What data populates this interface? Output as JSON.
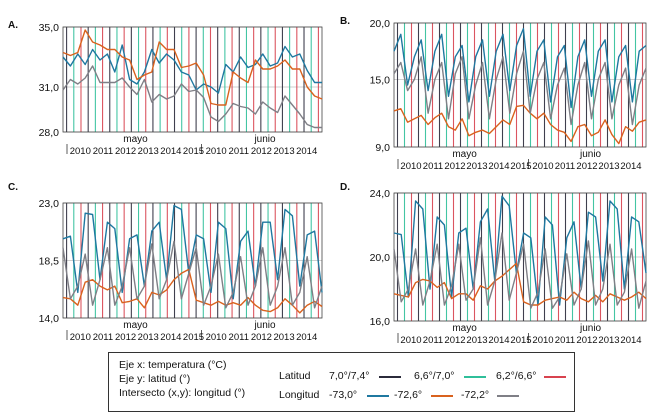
{
  "colors": {
    "lat_dark": "#2b2b3b",
    "lat_teal": "#2fbf9a",
    "lat_red": "#d8434f",
    "lon_blue": "#1f78a0",
    "lon_orange": "#d9621e",
    "lon_gray": "#7f7f86"
  },
  "legend": {
    "axis_x": "Eje x: temperatura (°C)",
    "axis_y": "Eje y: latitud (°)",
    "axis_xy": "Intersecto (x,y): longitud (°)",
    "lat_title": "Latitud",
    "lon_title": "Longitud",
    "lat_items": [
      {
        "label": "7,0°/7,4°",
        "color": "#2b2b3b"
      },
      {
        "label": "6,6°/7,0°",
        "color": "#2fbf9a"
      },
      {
        "label": "6,2°/6,6°",
        "color": "#d8434f"
      }
    ],
    "lon_items": [
      {
        "label": "-73,0°",
        "color": "#1f78a0"
      },
      {
        "label": "-72,6°",
        "color": "#d9621e"
      },
      {
        "label": "-72,2°",
        "color": "#7f7f86"
      }
    ]
  },
  "chart_data": [
    {
      "type": "line",
      "panel": "A.",
      "ylim": [
        28.0,
        35.0
      ],
      "yticks": [
        "35,0",
        "31,0",
        "28,0"
      ],
      "ytick_values": [
        35.0,
        31.0,
        28.0
      ],
      "years": [
        "2010",
        "2011",
        "2012",
        "2013",
        "2014",
        "2015",
        "2010",
        "2011",
        "2012",
        "2013",
        "2014"
      ],
      "months": [
        "mayo",
        "junio"
      ],
      "series": [
        {
          "color_key": "lon_blue",
          "values": [
            33.0,
            32.4,
            33.2,
            32.5,
            33.5,
            32.8,
            33.2,
            32.0,
            33.8,
            31.5,
            31.2,
            32.0,
            33.5,
            32.6,
            33.2,
            32.8,
            32.0,
            31.8,
            30.8,
            31.2,
            31.0,
            30.6,
            32.5,
            32.0,
            33.0,
            32.3,
            32.5,
            33.2,
            32.4,
            32.6,
            33.7,
            33.0,
            33.2,
            32.1,
            31.3,
            31.3
          ]
        },
        {
          "color_key": "lon_orange",
          "values": [
            33.3,
            33.1,
            33.3,
            34.8,
            34.0,
            33.8,
            33.5,
            33.5,
            33.0,
            32.8,
            31.5,
            31.8,
            32.0,
            34.0,
            33.5,
            33.5,
            32.3,
            32.4,
            32.6,
            31.8,
            29.9,
            29.8,
            29.8,
            32.0,
            31.6,
            31.3,
            32.8,
            32.2,
            32.2,
            32.4,
            32.8,
            32.2,
            32.2,
            31.0,
            30.4,
            30.2
          ]
        },
        {
          "color_key": "lon_gray",
          "values": [
            30.8,
            31.5,
            31.2,
            31.6,
            32.4,
            31.3,
            31.3,
            31.3,
            31.6,
            31.0,
            30.5,
            31.5,
            30.0,
            30.5,
            30.2,
            30.4,
            31.2,
            30.7,
            30.8,
            30.3,
            29.0,
            28.7,
            29.2,
            29.9,
            29.7,
            29.6,
            29.2,
            30.0,
            29.6,
            29.3,
            30.4,
            29.8,
            29.2,
            28.5,
            28.3,
            28.3
          ]
        }
      ]
    },
    {
      "type": "line",
      "panel": "B.",
      "ylim": [
        9.0,
        20.0
      ],
      "yticks": [
        "20,0",
        "15,0",
        "9,0"
      ],
      "ytick_values": [
        20.0,
        15.0,
        9.0
      ],
      "years": [
        "2010",
        "2011",
        "2012",
        "2013",
        "2014",
        "2015",
        "2010",
        "2011",
        "2012",
        "2013",
        "2014"
      ],
      "months": [
        "mayo",
        "junio"
      ],
      "series": [
        {
          "color_key": "lon_blue",
          "values": [
            17.5,
            19.0,
            14.5,
            17.0,
            18.5,
            14.0,
            17.5,
            19.0,
            13.5,
            17.0,
            18.0,
            13.0,
            17.0,
            18.5,
            13.5,
            17.5,
            19.0,
            14.0,
            18.0,
            19.5,
            13.5,
            17.5,
            18.5,
            13.0,
            17.0,
            18.0,
            12.5,
            17.0,
            18.5,
            13.5,
            17.5,
            18.5,
            13.0,
            17.0,
            18.0,
            13.0,
            17.5,
            18.0
          ]
        },
        {
          "color_key": "lon_orange",
          "values": [
            12.2,
            12.4,
            11.2,
            11.5,
            11.8,
            11.0,
            11.6,
            12.0,
            10.8,
            10.5,
            11.5,
            10.0,
            10.3,
            10.5,
            10.2,
            10.8,
            11.4,
            11.0,
            12.6,
            12.7,
            12.0,
            11.5,
            12.0,
            11.0,
            10.5,
            10.3,
            9.5,
            10.8,
            11.0,
            10.0,
            10.3,
            11.4,
            10.1,
            9.3,
            10.8,
            10.4,
            11.2,
            11.4
          ]
        },
        {
          "color_key": "lon_gray",
          "values": [
            15.5,
            16.5,
            14.0,
            15.0,
            17.0,
            12.0,
            15.0,
            16.5,
            11.5,
            15.5,
            17.0,
            11.5,
            14.5,
            16.5,
            11.5,
            15.0,
            17.0,
            12.0,
            15.5,
            17.5,
            12.0,
            15.0,
            16.5,
            11.5,
            14.5,
            16.0,
            11.0,
            14.5,
            16.5,
            11.5,
            15.0,
            16.5,
            11.5,
            14.5,
            16.0,
            11.0,
            14.5,
            16.0
          ]
        }
      ]
    },
    {
      "type": "line",
      "panel": "C.",
      "ylim": [
        14.0,
        23.0
      ],
      "yticks": [
        "23,0",
        "18,5",
        "14,0"
      ],
      "ytick_values": [
        23.0,
        18.5,
        14.0
      ],
      "years": [
        "2010",
        "2011",
        "2012",
        "2013",
        "2014",
        "2015",
        "2010",
        "2011",
        "2012",
        "2013",
        "2014"
      ],
      "months": [
        "mayo",
        "junio"
      ],
      "series": [
        {
          "color_key": "lon_blue",
          "values": [
            20.2,
            20.4,
            16.0,
            22.2,
            22.1,
            17.0,
            21.5,
            21.0,
            16.0,
            20.2,
            20.5,
            16.5,
            20.8,
            21.5,
            17.0,
            22.8,
            22.5,
            17.5,
            20.5,
            20.2,
            16.0,
            21.5,
            21.0,
            15.5,
            20.0,
            20.8,
            16.5,
            21.5,
            21.5,
            17.0,
            22.5,
            22.0,
            16.5,
            20.5,
            20.8,
            16.0
          ]
        },
        {
          "color_key": "lon_orange",
          "values": [
            15.6,
            15.5,
            15.0,
            16.8,
            17.0,
            16.5,
            16.2,
            16.5,
            15.2,
            15.3,
            15.5,
            14.8,
            16.0,
            15.8,
            16.2,
            17.0,
            17.5,
            17.8,
            15.4,
            15.2,
            15.0,
            15.3,
            15.0,
            15.2,
            15.0,
            15.6,
            15.0,
            14.6,
            14.5,
            14.8,
            15.5,
            15.0,
            14.4,
            15.0,
            15.3,
            14.9
          ]
        },
        {
          "color_key": "lon_gray",
          "values": [
            19.5,
            15.5,
            16.5,
            19.0,
            15.0,
            17.0,
            19.5,
            15.0,
            16.5,
            19.5,
            15.5,
            16.5,
            19.8,
            15.5,
            17.0,
            20.0,
            15.5,
            17.5,
            19.5,
            15.0,
            16.5,
            19.0,
            14.8,
            16.0,
            18.8,
            15.0,
            16.5,
            19.5,
            15.0,
            16.5,
            19.5,
            15.0,
            16.0,
            18.8,
            14.8,
            16.5
          ]
        }
      ]
    },
    {
      "type": "line",
      "panel": "D.",
      "ylim": [
        16.0,
        24.0
      ],
      "yticks": [
        "24,0",
        "20,0",
        "16,0"
      ],
      "ytick_values": [
        24.0,
        20.0,
        16.0
      ],
      "years": [
        "2010",
        "2011",
        "2012",
        "2013",
        "2014",
        "2015",
        "2010",
        "2011",
        "2012",
        "2013",
        "2014"
      ],
      "months": [
        "mayo",
        "junio"
      ],
      "series": [
        {
          "color_key": "lon_blue",
          "values": [
            21.5,
            21.4,
            17.5,
            23.5,
            23.0,
            18.0,
            22.5,
            22.0,
            17.5,
            21.5,
            21.8,
            18.0,
            22.2,
            23.0,
            18.5,
            23.8,
            23.2,
            19.0,
            21.5,
            21.2,
            17.0,
            22.5,
            22.0,
            17.0,
            21.2,
            22.2,
            18.0,
            22.8,
            22.5,
            18.5,
            23.5,
            23.0,
            18.0,
            22.5,
            22.2,
            19.0
          ]
        },
        {
          "color_key": "lon_orange",
          "values": [
            17.7,
            17.6,
            17.5,
            18.4,
            18.6,
            18.5,
            18.1,
            18.4,
            17.4,
            17.7,
            17.7,
            17.3,
            18.2,
            18.0,
            18.5,
            18.8,
            19.2,
            19.6,
            17.2,
            17.0,
            17.0,
            17.3,
            17.4,
            17.5,
            17.3,
            17.8,
            17.4,
            17.2,
            17.6,
            17.2,
            17.7,
            17.5,
            17.3,
            17.5,
            17.8,
            17.4
          ]
        },
        {
          "color_key": "lon_gray",
          "values": [
            20.5,
            17.2,
            18.0,
            20.5,
            17.0,
            18.5,
            20.8,
            17.0,
            18.2,
            20.8,
            17.3,
            18.0,
            21.2,
            17.0,
            18.5,
            21.5,
            17.3,
            19.0,
            20.8,
            16.8,
            17.8,
            20.5,
            16.8,
            17.5,
            20.2,
            17.0,
            18.0,
            21.0,
            17.0,
            18.0,
            20.8,
            17.0,
            17.8,
            20.5,
            16.8,
            18.5
          ]
        }
      ]
    }
  ]
}
